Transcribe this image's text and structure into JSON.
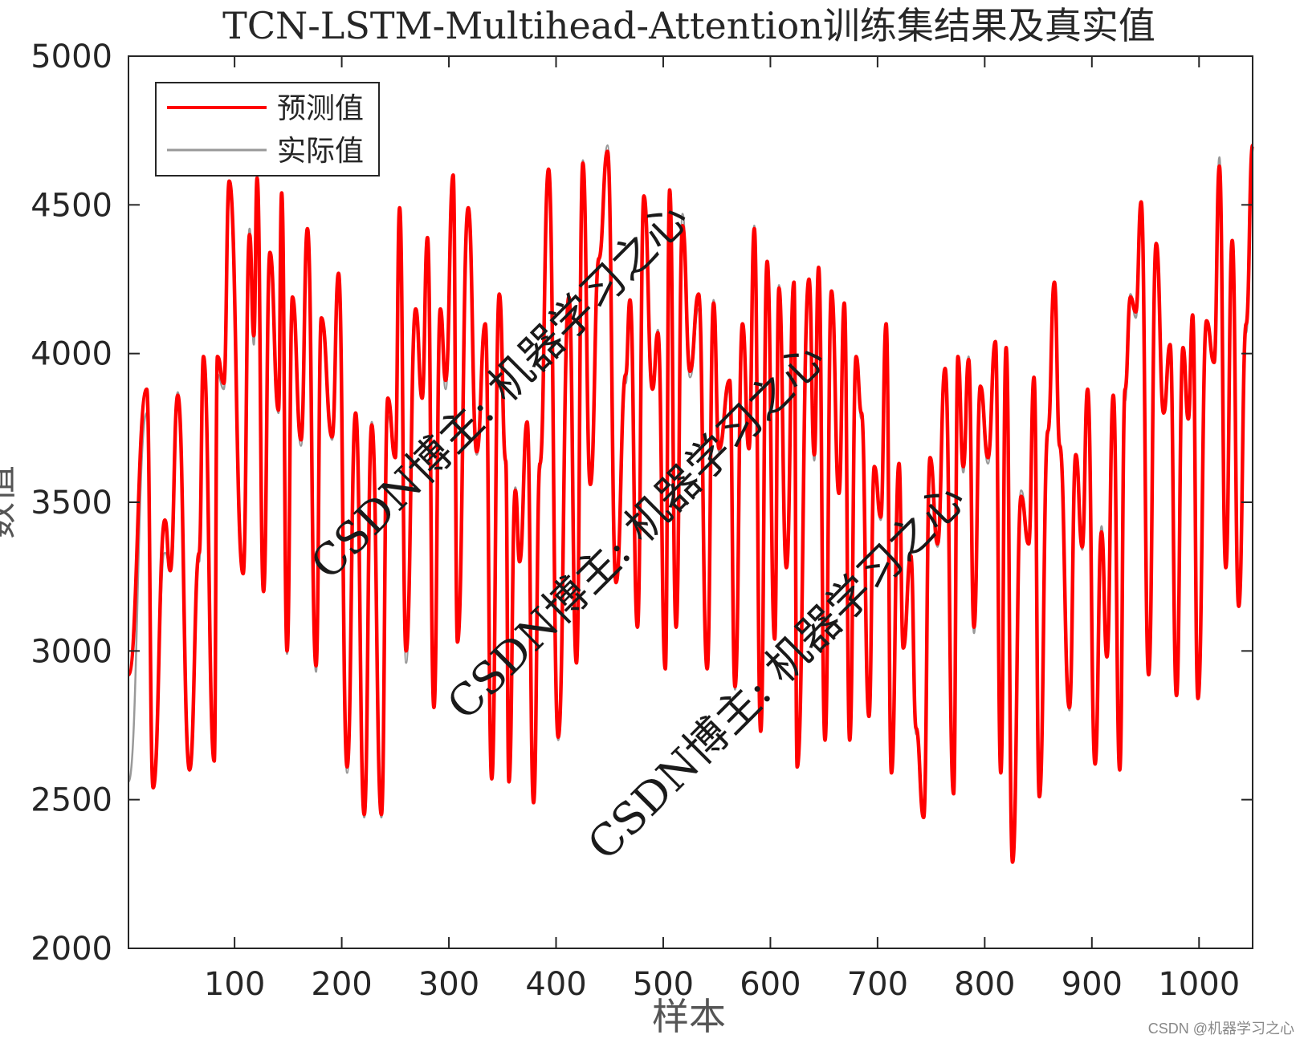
{
  "chart_data": {
    "type": "line",
    "title": "TCN-LSTM-Multihead-Attention训练集结果及真实值",
    "xlabel": "样本",
    "ylabel": "数值",
    "xlim": [
      1,
      1050
    ],
    "ylim": [
      2000,
      5000
    ],
    "xticks": [
      100,
      200,
      300,
      400,
      500,
      600,
      700,
      800,
      900,
      1000
    ],
    "yticks": [
      2000,
      2500,
      3000,
      3500,
      4000,
      4500,
      5000
    ],
    "legend_position": "top-left",
    "grid": false,
    "series": [
      {
        "name": "预测值",
        "color": "#ff0000",
        "x": [
          1,
          18,
          24,
          35,
          40,
          47,
          58,
          67,
          71,
          81,
          84,
          90,
          95,
          108,
          114,
          118,
          121,
          127,
          133,
          141,
          144,
          149,
          154,
          162,
          168,
          176,
          181,
          191,
          197,
          205,
          213,
          221,
          228,
          237,
          243,
          250,
          254,
          260,
          269,
          275,
          280,
          286,
          292,
          297,
          304,
          308,
          318,
          326,
          334,
          340,
          347,
          353,
          356,
          362,
          366,
          373,
          379,
          385,
          393,
          402,
          412,
          419,
          425,
          432,
          440,
          448,
          456,
          465,
          469,
          476,
          482,
          490,
          495,
          502,
          506,
          512,
          518,
          525,
          533,
          541,
          547,
          552,
          562,
          567,
          574,
          580,
          585,
          591,
          597,
          604,
          608,
          615,
          622,
          625,
          636,
          641,
          645,
          651,
          657,
          664,
          669,
          674,
          680,
          685,
          692,
          697,
          703,
          708,
          713,
          720,
          724,
          731,
          736,
          743,
          749,
          756,
          763,
          771,
          775,
          780,
          785,
          790,
          796,
          803,
          810,
          815,
          820,
          826,
          834,
          841,
          846,
          851,
          859,
          865,
          870,
          879,
          885,
          891,
          896,
          903,
          909,
          914,
          920,
          926,
          931,
          936,
          941,
          946,
          953,
          960,
          967,
          973,
          979,
          985,
          990,
          994,
          999,
          1007,
          1014,
          1019,
          1025,
          1031,
          1037,
          1044,
          1050
        ],
        "y": [
          2920,
          3880,
          2540,
          3440,
          3270,
          3860,
          2600,
          3330,
          3990,
          2630,
          3990,
          3900,
          4580,
          3260,
          4400,
          4060,
          4590,
          3200,
          4340,
          3810,
          4540,
          3000,
          4190,
          3710,
          4420,
          2950,
          4120,
          3720,
          4270,
          2610,
          3800,
          2450,
          3760,
          2450,
          3850,
          3650,
          4490,
          3000,
          4150,
          3850,
          4390,
          2810,
          4150,
          3910,
          4600,
          3030,
          4490,
          3670,
          4100,
          2570,
          4200,
          3640,
          2560,
          3540,
          3300,
          3770,
          2490,
          3630,
          4620,
          2710,
          4190,
          2960,
          4640,
          3560,
          4320,
          4680,
          3230,
          3930,
          4180,
          3080,
          4530,
          3880,
          4070,
          2940,
          4550,
          3080,
          4430,
          3940,
          4200,
          2940,
          4170,
          3680,
          3910,
          2880,
          4100,
          3680,
          4420,
          2730,
          4310,
          3040,
          4220,
          3280,
          4240,
          2610,
          4250,
          3660,
          4290,
          2700,
          4210,
          3530,
          4170,
          2700,
          3990,
          3800,
          2780,
          3620,
          3450,
          4100,
          2590,
          3630,
          3010,
          3320,
          2740,
          2440,
          3650,
          3360,
          3950,
          2520,
          3990,
          3620,
          3980,
          3080,
          3890,
          3650,
          4040,
          2590,
          4020,
          2290,
          3520,
          3360,
          3920,
          2510,
          3740,
          4240,
          3690,
          2810,
          3660,
          3350,
          3880,
          2620,
          3400,
          2980,
          3860,
          2600,
          3880,
          4190,
          4140,
          4510,
          2920,
          4370,
          3800,
          4030,
          2850,
          4020,
          3780,
          4130,
          2840,
          4110,
          3970,
          4630,
          3280,
          4380,
          3150,
          4100,
          4700
        ]
      },
      {
        "name": "实际值",
        "color": "#999999",
        "x": [
          1,
          18,
          24,
          35,
          40,
          47,
          58,
          67,
          71,
          81,
          84,
          90,
          95,
          108,
          114,
          118,
          121,
          127,
          133,
          141,
          144,
          149,
          154,
          162,
          168,
          176,
          181,
          191,
          197,
          205,
          213,
          221,
          228,
          237,
          243,
          250,
          254,
          260,
          269,
          275,
          280,
          286,
          292,
          297,
          304,
          308,
          318,
          326,
          334,
          340,
          347,
          353,
          356,
          362,
          366,
          373,
          379,
          385,
          393,
          402,
          412,
          419,
          425,
          432,
          440,
          448,
          456,
          465,
          469,
          476,
          482,
          490,
          495,
          502,
          506,
          512,
          518,
          525,
          533,
          541,
          547,
          552,
          562,
          567,
          574,
          580,
          585,
          591,
          597,
          604,
          608,
          615,
          622,
          625,
          636,
          641,
          645,
          651,
          657,
          664,
          669,
          674,
          680,
          685,
          692,
          697,
          703,
          708,
          713,
          720,
          724,
          731,
          736,
          743,
          749,
          756,
          763,
          771,
          775,
          780,
          785,
          790,
          796,
          803,
          810,
          815,
          820,
          826,
          834,
          841,
          846,
          851,
          859,
          865,
          870,
          879,
          885,
          891,
          896,
          903,
          909,
          914,
          920,
          926,
          931,
          936,
          941,
          946,
          953,
          960,
          967,
          973,
          979,
          985,
          990,
          994,
          999,
          1007,
          1014,
          1019,
          1025,
          1031,
          1037,
          1044,
          1050
        ],
        "y": [
          2560,
          3800,
          2570,
          3330,
          3290,
          3870,
          2630,
          3300,
          3980,
          2640,
          3930,
          3880,
          4560,
          3280,
          4420,
          4030,
          4610,
          3230,
          4300,
          3800,
          4470,
          2990,
          4170,
          3690,
          4380,
          2930,
          4100,
          3710,
          4240,
          2590,
          3790,
          2440,
          3770,
          2440,
          3790,
          3660,
          4460,
          2960,
          4120,
          3890,
          4380,
          2830,
          4130,
          3880,
          4580,
          3050,
          4480,
          3660,
          4070,
          2580,
          4160,
          3620,
          2590,
          3550,
          3300,
          3740,
          2510,
          3610,
          4600,
          2700,
          4160,
          2980,
          4650,
          3570,
          4310,
          4700,
          3250,
          3900,
          4150,
          3100,
          4480,
          3880,
          4080,
          2960,
          4510,
          3100,
          4470,
          3920,
          4150,
          2950,
          4180,
          3670,
          3880,
          2870,
          4090,
          3690,
          4430,
          2760,
          4290,
          3060,
          4230,
          3280,
          4220,
          2630,
          4230,
          3640,
          4260,
          2720,
          4180,
          3530,
          4130,
          2720,
          3960,
          3780,
          2800,
          3610,
          3440,
          4030,
          2620,
          3620,
          3040,
          3300,
          2720,
          2440,
          3620,
          3350,
          3900,
          2530,
          3970,
          3600,
          3990,
          3060,
          3870,
          3630,
          4010,
          2600,
          4000,
          2310,
          3540,
          3380,
          3890,
          2520,
          3730,
          4200,
          3680,
          2800,
          3640,
          3340,
          3860,
          2640,
          3420,
          2990,
          3830,
          2610,
          3840,
          4200,
          4120,
          4480,
          2930,
          4350,
          3800,
          4020,
          2870,
          4010,
          3800,
          4090,
          2850,
          4090,
          3970,
          4660,
          3300,
          4350,
          3180,
          4070,
          4700
        ]
      }
    ]
  },
  "legend": {
    "items": [
      "预测值",
      "实际值"
    ]
  },
  "watermarks": [
    "CSDN博主: 机器学习之心",
    "CSDN博主: 机器学习之心",
    "CSDN博主: 机器学习之心"
  ],
  "footer": "CSDN @机器学习之心"
}
